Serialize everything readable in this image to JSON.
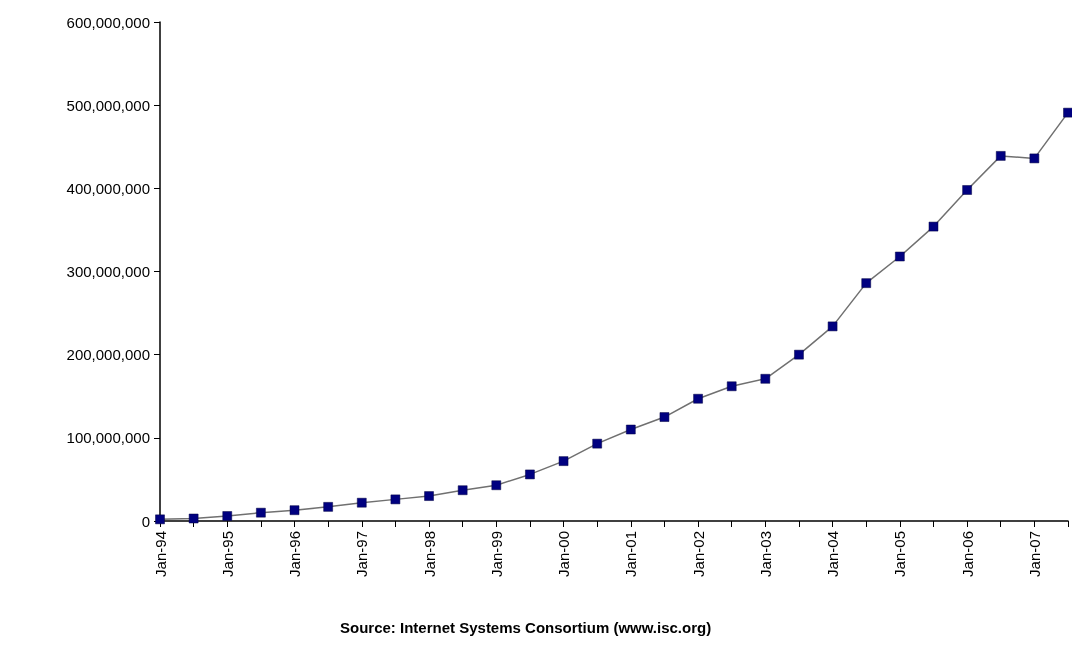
{
  "chart_data": {
    "type": "line",
    "categories": [
      "Jan-94",
      null,
      "Jan-95",
      null,
      "Jan-96",
      null,
      "Jan-97",
      null,
      "Jan-98",
      null,
      "Jan-99",
      null,
      "Jan-00",
      null,
      "Jan-01",
      null,
      "Jan-02",
      null,
      "Jan-03",
      null,
      "Jan-04",
      null,
      "Jan-05",
      null,
      "Jan-06",
      null,
      "Jan-07",
      null
    ],
    "series": [
      {
        "color": "#000080",
        "values": [
          2000000,
          3000000,
          6000000,
          10000000,
          13000000,
          17000000,
          22000000,
          26000000,
          30000000,
          37000000,
          43000000,
          56000000,
          72000000,
          93000000,
          110000000,
          125000000,
          147000000,
          162000000,
          171000000,
          200000000,
          234000000,
          286000000,
          318000000,
          354000000,
          398000000,
          439000000,
          436000000,
          491000000
        ]
      }
    ],
    "ylim": [
      0,
      600000000
    ],
    "yticks": [
      0,
      {
        "value": 100000000,
        "label": "100,000,000"
      },
      {
        "value": 200000000,
        "label": "200,000,000"
      },
      {
        "value": 300000000,
        "label": "300,000,000"
      },
      {
        "value": 400000000,
        "label": "400,000,000"
      },
      {
        "value": 500000000,
        "label": "500,000,000"
      },
      {
        "value": 600000000,
        "label": "600,000,000"
      }
    ],
    "grid": false,
    "marker": "square",
    "line_style": "solid",
    "annotations": [
      "Source: Internet Systems Consortium (www.isc.org)"
    ]
  }
}
